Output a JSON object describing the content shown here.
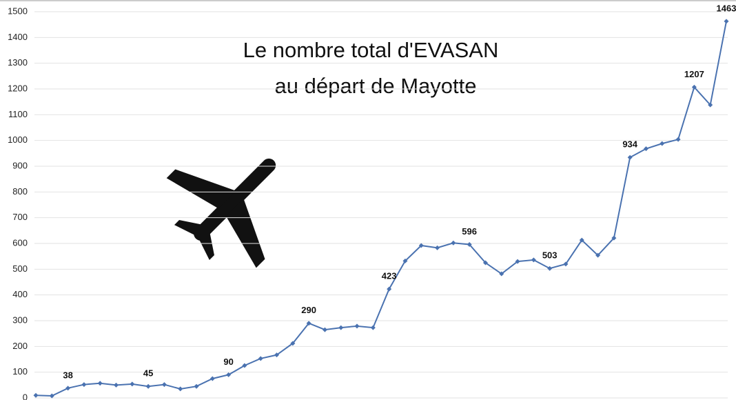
{
  "chart_data": {
    "type": "line",
    "title": [
      "Le nombre total d'EVASAN",
      "au départ de Mayotte"
    ],
    "categories": [
      null,
      null,
      null,
      null,
      null,
      null,
      null,
      null,
      null,
      null,
      null,
      null,
      null,
      null,
      null,
      null,
      null,
      null,
      null,
      null,
      null,
      null,
      null,
      null,
      null,
      null,
      null,
      null,
      null,
      null,
      null,
      null,
      null,
      null,
      null,
      null,
      null,
      null,
      null,
      null,
      null,
      null,
      null,
      null
    ],
    "values": [
      10,
      8,
      38,
      52,
      57,
      50,
      54,
      45,
      52,
      35,
      45,
      75,
      90,
      126,
      153,
      167,
      212,
      290,
      265,
      273,
      279,
      273,
      423,
      532,
      592,
      583,
      602,
      596,
      525,
      482,
      530,
      536,
      503,
      520,
      613,
      554,
      621,
      934,
      968,
      988,
      1004,
      1207,
      1138,
      1463
    ],
    "value_labels": [
      null,
      null,
      "38",
      null,
      null,
      null,
      null,
      "45",
      null,
      null,
      null,
      null,
      "90",
      null,
      null,
      null,
      null,
      "290",
      null,
      null,
      null,
      null,
      "423",
      null,
      null,
      null,
      null,
      "596",
      null,
      null,
      null,
      null,
      "503",
      null,
      null,
      null,
      null,
      "934",
      null,
      null,
      null,
      "1207",
      null,
      "1463"
    ],
    "color": "#4a72b0",
    "ylim": [
      0,
      1500
    ],
    "yticks": [
      0,
      100,
      200,
      300,
      400,
      500,
      600,
      700,
      800,
      900,
      1000,
      1100,
      1200,
      1300,
      1400,
      1500
    ],
    "grid": true
  }
}
